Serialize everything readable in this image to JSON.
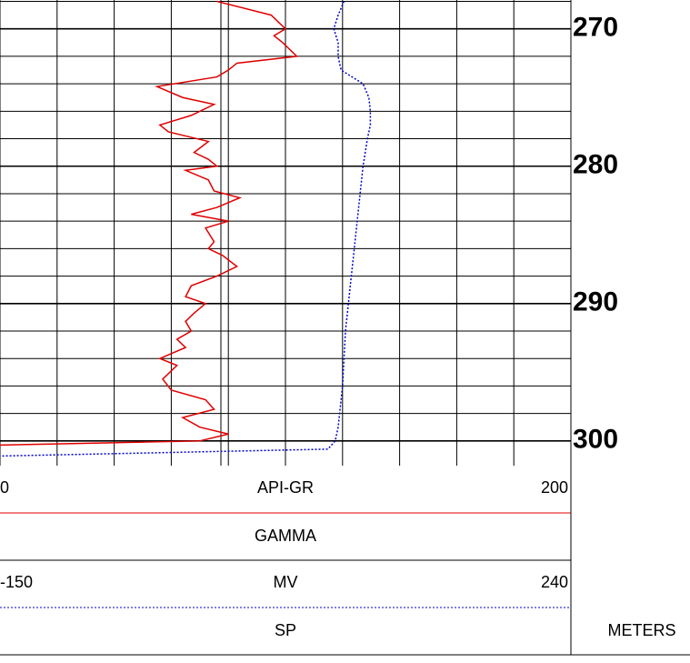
{
  "chart_data": {
    "type": "well-log",
    "y_label": "METERS",
    "ylim": [
      267.9,
      301.8
    ],
    "yticks": [
      270,
      280,
      290,
      300
    ],
    "ygrid": [
      268,
      270,
      272,
      274,
      276,
      278,
      280,
      282,
      284,
      286,
      288,
      290,
      292,
      294,
      296,
      298,
      300
    ],
    "series": [
      {
        "name": "GAMMA",
        "unit": "API-GR",
        "color": "#e00000",
        "dash": "none",
        "xlim": [
          0,
          200
        ],
        "depth": [
          268,
          269,
          270,
          270.5,
          271,
          272,
          272.5,
          273,
          273.5,
          274.2,
          275,
          275.5,
          276.3,
          277,
          277.5,
          278.2,
          279,
          279.5,
          280,
          280.3,
          281,
          281.8,
          282.3,
          283,
          283.5,
          284,
          284.5,
          285.5,
          286,
          286.5,
          287.3,
          288,
          288.7,
          289.5,
          290,
          290.7,
          291.3,
          292,
          292.6,
          293.2,
          294,
          294.5,
          295.5,
          296.3,
          297,
          297.7,
          298.3,
          299,
          299.5,
          300,
          300.3
        ],
        "values": [
          76,
          95,
          100,
          96,
          99,
          104,
          83,
          80,
          76,
          55,
          64,
          75,
          67,
          56,
          59,
          73,
          68,
          73,
          76,
          65,
          73,
          75,
          84,
          76,
          67,
          80,
          72,
          75,
          73,
          78,
          83,
          76,
          67,
          65,
          72,
          68,
          65,
          67,
          62,
          65,
          56,
          62,
          57,
          60,
          72,
          75,
          64,
          70,
          80,
          70,
          0
        ]
      },
      {
        "name": "SP",
        "unit": "MV",
        "color": "#0000d0",
        "dash": "2,2",
        "xlim": [
          -150,
          240
        ],
        "depth": [
          268,
          269,
          270,
          271,
          272,
          273,
          274,
          275,
          276,
          277,
          278,
          280,
          282,
          284,
          286,
          288,
          290,
          292,
          294,
          296,
          298,
          299,
          300,
          300.6,
          301.1
        ],
        "values": [
          85,
          81,
          78,
          81,
          81,
          83,
          98,
          102,
          103,
          103,
          101,
          98,
          96,
          94,
          92,
          90,
          88,
          86,
          85,
          84,
          82,
          81,
          79,
          74,
          -150
        ]
      }
    ]
  }
}
